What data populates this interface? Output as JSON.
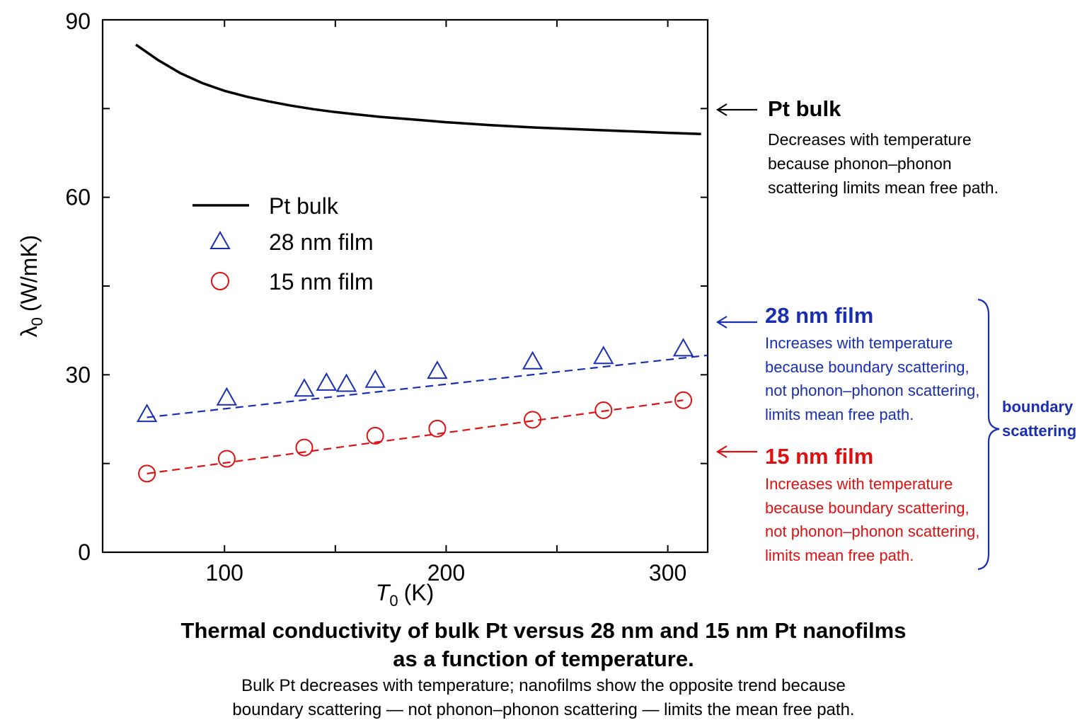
{
  "chart_data": {
    "type": "line",
    "xlabel": "T",
    "xlabel_sub": "0",
    "xlabel_unit": "(K)",
    "ylabel": "λ",
    "ylabel_sub": "0",
    "ylabel_unit": "(W/mK)",
    "xlim": [
      45,
      318
    ],
    "ylim": [
      0,
      90
    ],
    "x_ticks": [
      100,
      200,
      300
    ],
    "y_ticks": [
      0,
      30,
      60,
      90
    ],
    "x_minor_ticks": [
      150,
      250
    ],
    "y_minor_ticks": [
      15,
      45,
      75
    ],
    "grid": false,
    "legend_position": "upper-left",
    "series": [
      {
        "name": "Pt bulk",
        "style": "solid-line",
        "color": "#000000",
        "x": [
          60,
          70,
          80,
          90,
          100,
          110,
          120,
          130,
          140,
          150,
          160,
          170,
          180,
          190,
          200,
          220,
          240,
          260,
          280,
          300,
          315
        ],
        "y": [
          85.8,
          83.2,
          81.0,
          79.3,
          78.0,
          77.0,
          76.2,
          75.5,
          74.9,
          74.4,
          74.0,
          73.6,
          73.3,
          73.0,
          72.7,
          72.2,
          71.8,
          71.5,
          71.2,
          70.9,
          70.7
        ]
      },
      {
        "name": "28 nm film",
        "style": "triangle-markers",
        "color": "#1a2fb0",
        "x": [
          65,
          101,
          136,
          146,
          155,
          168,
          196,
          239,
          271,
          307
        ],
        "y": [
          23.2,
          26.0,
          27.5,
          28.5,
          28.3,
          29.0,
          30.5,
          32.1,
          33.0,
          34.3
        ]
      },
      {
        "name": "28 nm fit",
        "style": "dashed-line",
        "color": "#1a2fb0",
        "x": [
          65,
          318
        ],
        "y": [
          22.8,
          33.3
        ]
      },
      {
        "name": "15 nm film",
        "style": "circle-markers",
        "color": "#dd1111",
        "x": [
          65,
          101,
          136,
          168,
          196,
          239,
          271,
          307
        ],
        "y": [
          13.3,
          15.8,
          17.7,
          19.7,
          20.9,
          22.4,
          24.0,
          25.7
        ]
      },
      {
        "name": "15 nm fit",
        "style": "dashed-line",
        "color": "#dd1111",
        "x": [
          65,
          307
        ],
        "y": [
          13.3,
          25.7
        ]
      }
    ],
    "legend": [
      {
        "label": "Pt bulk",
        "marker": "line"
      },
      {
        "label": "28 nm film",
        "marker": "triangle"
      },
      {
        "label": "15 nm film",
        "marker": "circle"
      }
    ]
  },
  "annotations": {
    "bulk": {
      "title": "Pt bulk",
      "lines": [
        "Decreases with temperature",
        "because phonon–phonon",
        "scattering limits mean free path."
      ]
    },
    "film28": {
      "title": "28 nm film",
      "lines": [
        "Increases with temperature",
        "because boundary scattering,",
        "not phonon–phonon scattering,",
        "limits mean free path."
      ]
    },
    "film15": {
      "title": "15 nm film",
      "lines": [
        "Increases with temperature",
        "because boundary scattering,",
        "not phonon–phonon scattering,",
        "limits mean free path."
      ]
    },
    "bracket": {
      "line1": "boundary",
      "line2": "scattering"
    }
  },
  "caption": {
    "title_line1": "Thermal conductivity of bulk Pt versus 28 nm and 15 nm Pt nanofilms",
    "title_line2": "as a function of temperature.",
    "subtitle_line1": "Bulk Pt decreases with temperature; nanofilms show the opposite trend because",
    "subtitle_line2": "boundary scattering — not phonon–phonon scattering — limits the mean free path."
  },
  "colors": {
    "bulk": "#000000",
    "film28": "#1a2fb0",
    "film15": "#dd1111"
  }
}
